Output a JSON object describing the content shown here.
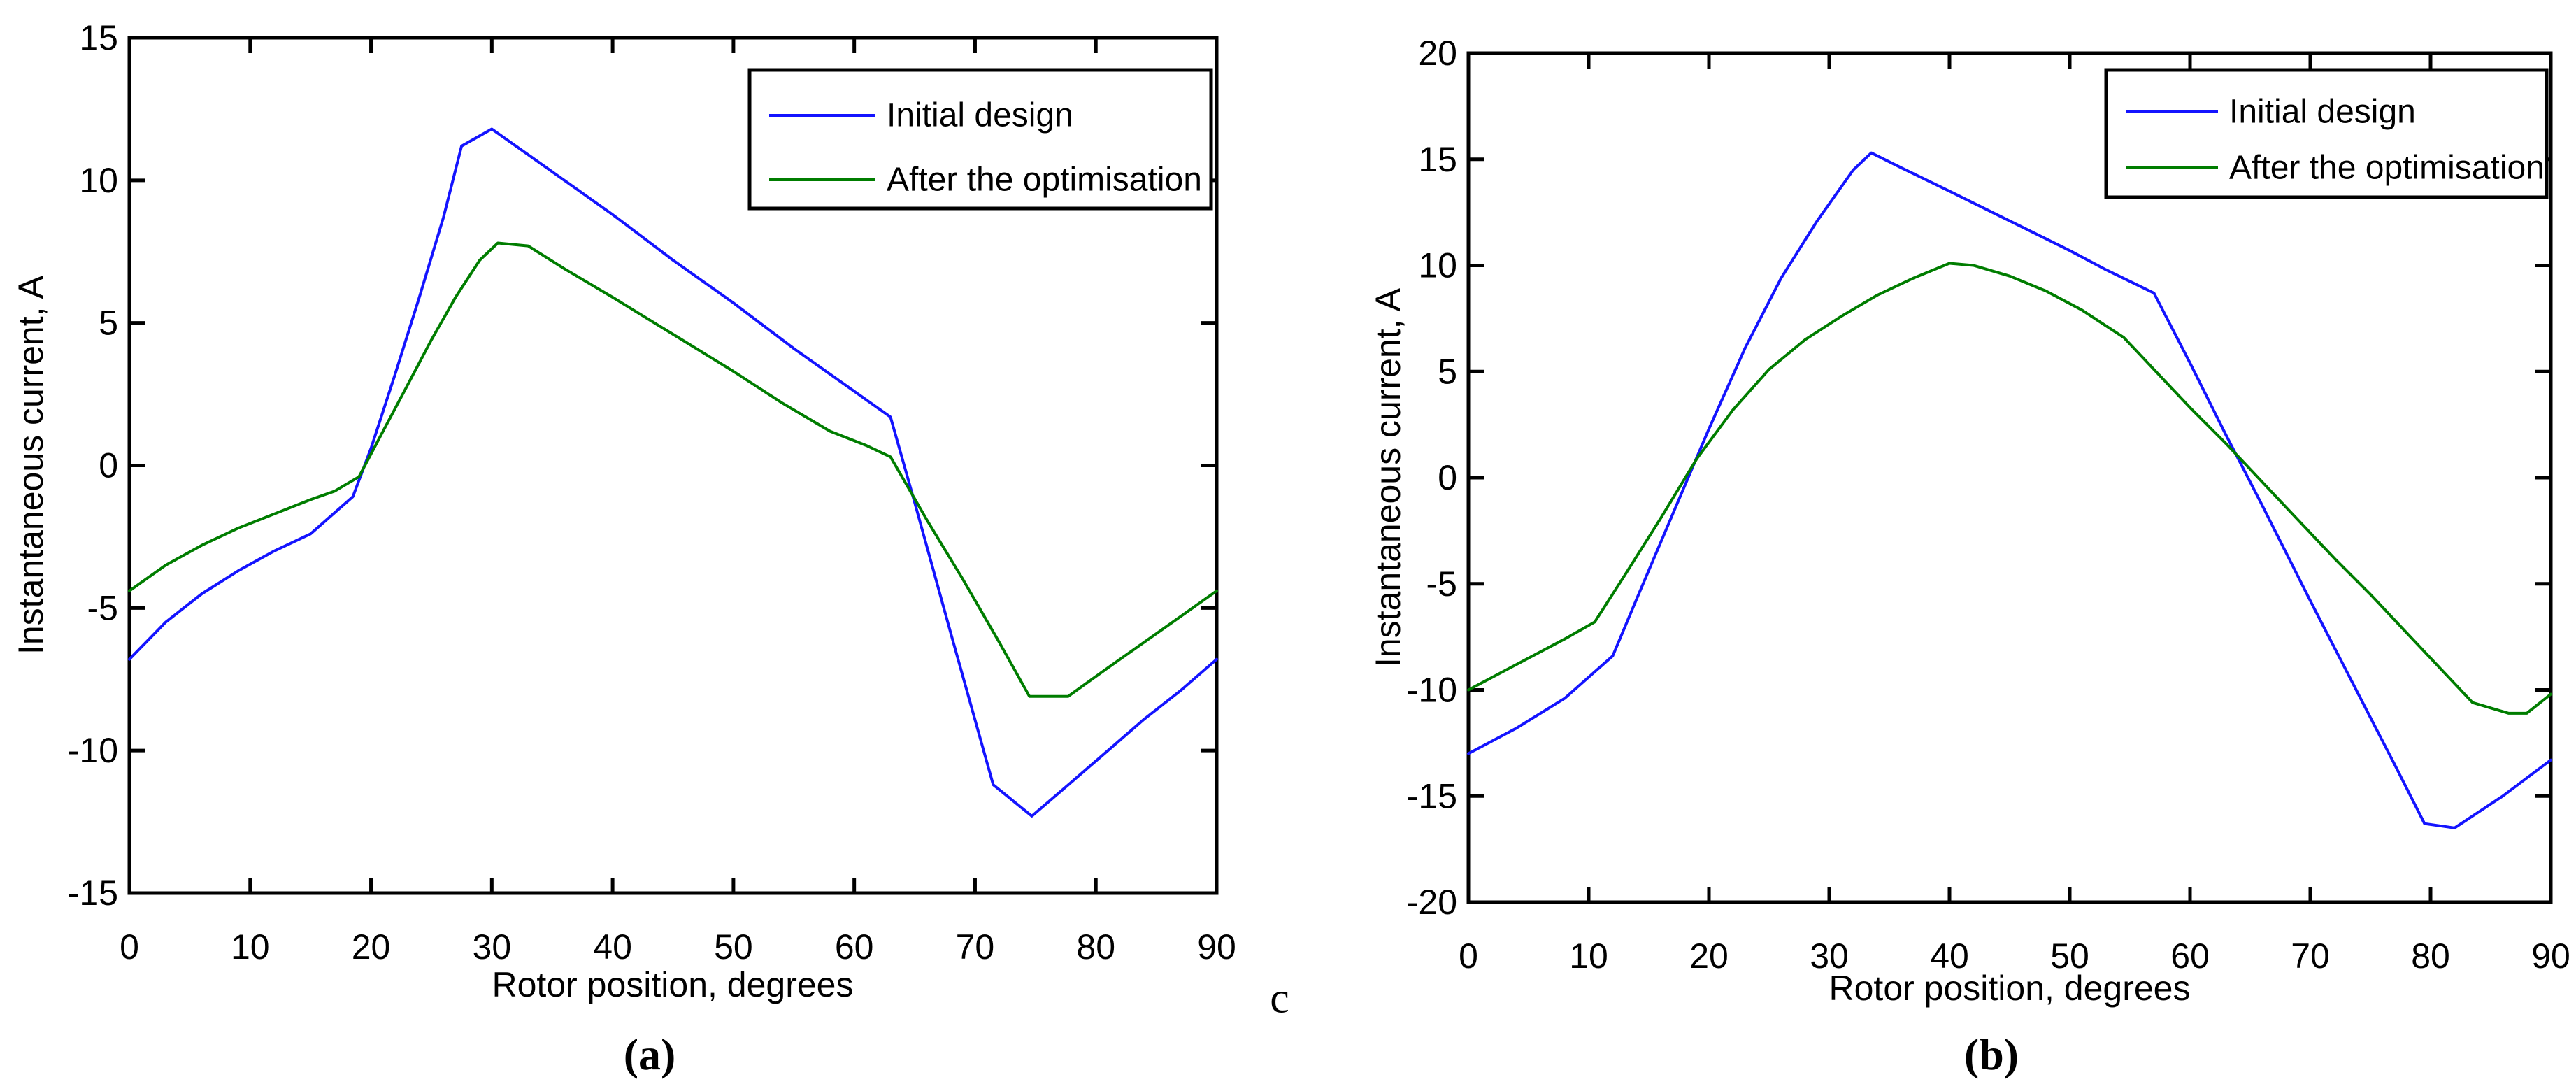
{
  "figure": {
    "background": "#ffffff",
    "stray_label": "c",
    "colors": {
      "axis": "#000000",
      "text": "#000000",
      "initial_design": "#1414ff",
      "after_optimisation": "#007d00"
    }
  },
  "chart_data": [
    {
      "id": "a",
      "type": "line",
      "caption": "(a)",
      "xlabel": "Rotor position, degrees",
      "ylabel": "Instantaneous current, A",
      "xlim": [
        0,
        90
      ],
      "ylim": [
        -15,
        15
      ],
      "xticks": [
        0,
        10,
        20,
        30,
        40,
        50,
        60,
        70,
        80,
        90
      ],
      "yticks": [
        15,
        10,
        5,
        0,
        -5,
        -10,
        -15
      ],
      "grid": false,
      "legend": {
        "position": "top-right",
        "entries": [
          "Initial design",
          "After the optimisation"
        ]
      },
      "series": [
        {
          "name": "Initial design",
          "color": "#1414ff",
          "x": [
            0,
            3,
            6,
            9,
            12,
            15,
            18.5,
            20,
            22,
            24,
            26,
            27.5,
            30,
            33,
            36,
            40,
            45,
            50,
            55,
            60,
            63,
            65,
            68,
            71.5,
            74.7,
            78,
            81,
            84,
            87,
            90
          ],
          "y": [
            -6.8,
            -5.5,
            -4.5,
            -3.7,
            -3.0,
            -2.4,
            -1.1,
            0.6,
            3.2,
            5.9,
            8.7,
            11.2,
            11.8,
            10.9,
            10.0,
            8.8,
            7.2,
            5.7,
            4.1,
            2.6,
            1.7,
            -1.3,
            -5.9,
            -11.2,
            -12.3,
            -11.1,
            -10.0,
            -8.9,
            -7.9,
            -6.8
          ]
        },
        {
          "name": "After the optimisation",
          "color": "#007d00",
          "x": [
            0,
            3,
            6,
            9,
            12,
            15,
            17,
            19,
            21,
            23,
            25,
            27,
            29,
            30.5,
            33,
            36,
            40,
            45,
            50,
            54,
            58,
            61,
            63,
            66,
            69,
            72,
            74.5,
            77.7,
            81,
            84,
            87,
            90
          ],
          "y": [
            -4.4,
            -3.5,
            -2.8,
            -2.2,
            -1.7,
            -1.2,
            -0.9,
            -0.4,
            1.2,
            2.8,
            4.4,
            5.9,
            7.2,
            7.8,
            7.7,
            6.9,
            5.9,
            4.6,
            3.3,
            2.2,
            1.2,
            0.7,
            0.3,
            -1.9,
            -4.0,
            -6.2,
            -8.1,
            -8.1,
            -7.1,
            -6.2,
            -5.3,
            -4.4
          ]
        }
      ]
    },
    {
      "id": "b",
      "type": "line",
      "caption": "(b)",
      "xlabel": "Rotor position, degrees",
      "ylabel": "Instantaneous current, A",
      "xlim": [
        0,
        90
      ],
      "ylim": [
        -20,
        20
      ],
      "xticks": [
        0,
        10,
        20,
        30,
        40,
        50,
        60,
        70,
        80,
        90
      ],
      "yticks": [
        20,
        15,
        10,
        5,
        0,
        -5,
        -10,
        -15,
        -20
      ],
      "grid": false,
      "legend": {
        "position": "top-right",
        "entries": [
          "Initial design",
          "After the optimisation"
        ]
      },
      "series": [
        {
          "name": "Initial design",
          "color": "#1414ff",
          "x": [
            0,
            4,
            8,
            12,
            14,
            17,
            20,
            23,
            26,
            29,
            32,
            33.5,
            36,
            40,
            45,
            50,
            53,
            57,
            60,
            63,
            66,
            70,
            74,
            77,
            79.5,
            82,
            86,
            90
          ],
          "y": [
            -13.0,
            -11.8,
            -10.4,
            -8.4,
            -5.7,
            -1.7,
            2.3,
            6.1,
            9.4,
            12.1,
            14.5,
            15.3,
            14.6,
            13.5,
            12.1,
            10.7,
            9.8,
            8.7,
            5.4,
            2.0,
            -1.3,
            -5.8,
            -10.2,
            -13.5,
            -16.3,
            -16.5,
            -15.0,
            -13.3
          ]
        },
        {
          "name": "After the optimisation",
          "color": "#007d00",
          "x": [
            0,
            4,
            8,
            10.5,
            13,
            16,
            19,
            22,
            25,
            28,
            31,
            34,
            37,
            40,
            42,
            45,
            48,
            51,
            54.5,
            57,
            60,
            63,
            66.5,
            69,
            72,
            75,
            78,
            81,
            83.5,
            86.5,
            88,
            90
          ],
          "y": [
            -10.0,
            -8.8,
            -7.6,
            -6.8,
            -4.6,
            -1.9,
            0.9,
            3.2,
            5.1,
            6.5,
            7.6,
            8.6,
            9.4,
            10.1,
            10.0,
            9.5,
            8.8,
            7.9,
            6.6,
            5.1,
            3.3,
            1.6,
            -0.5,
            -2.0,
            -3.8,
            -5.5,
            -7.3,
            -9.1,
            -10.6,
            -11.1,
            -11.1,
            -10.2
          ]
        }
      ]
    }
  ]
}
